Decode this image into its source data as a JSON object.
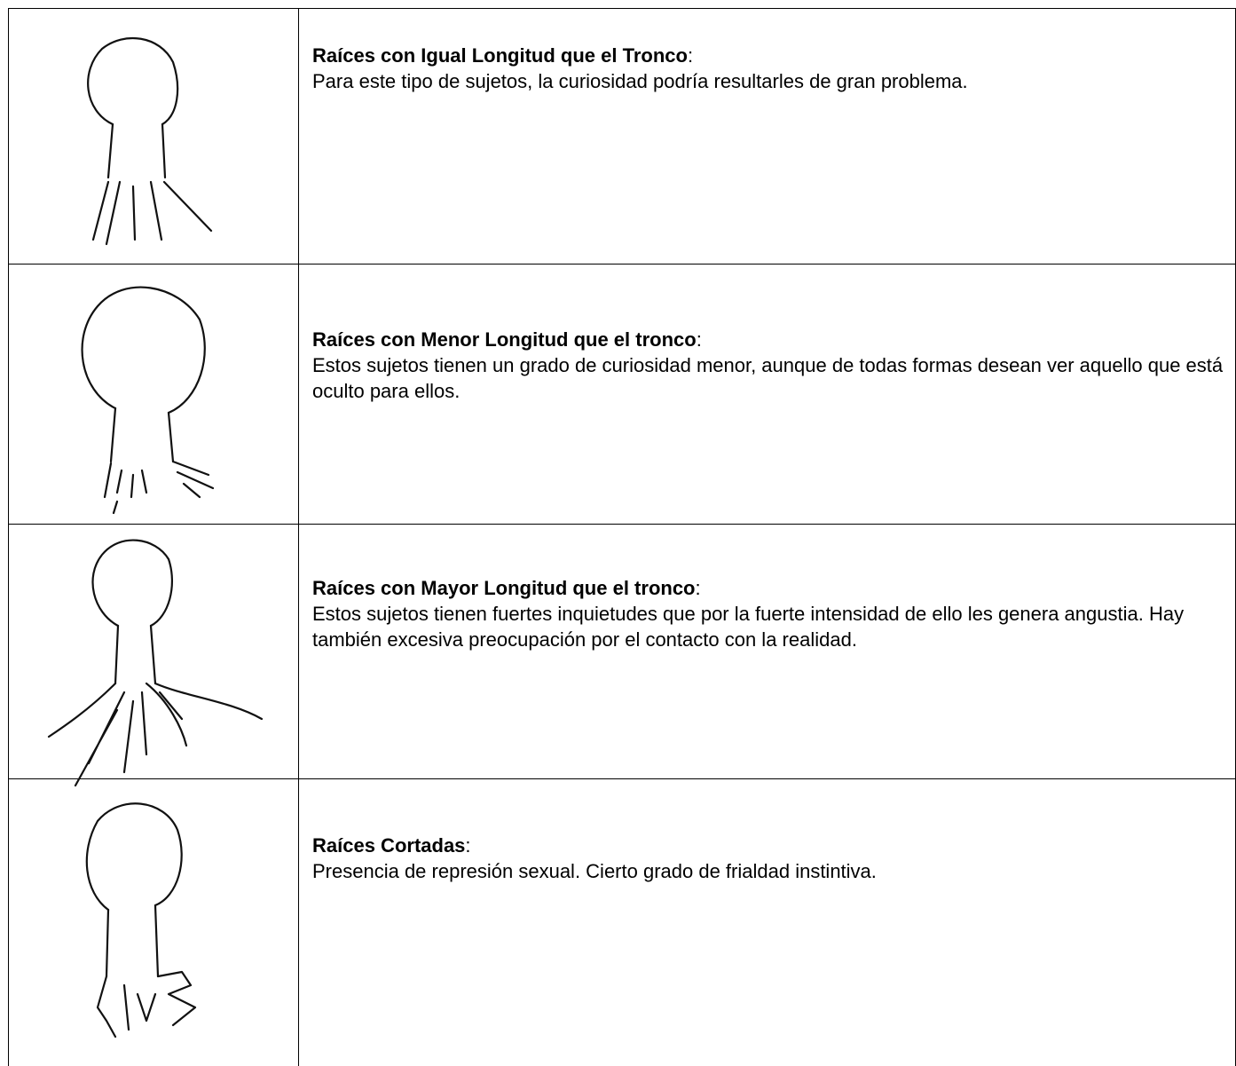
{
  "table": {
    "rows": [
      {
        "heading": "Raíces con Igual Longitud que el Tronco",
        "heading_end": ":",
        "text": "Para este tipo de sujetos, la curiosidad podría resultarles de gran problema."
      },
      {
        "heading": "Raíces con Menor Longitud que el tronco",
        "heading_end": ":",
        "text": "Estos sujetos tienen un grado de curiosidad menor, aunque de todas formas desean ver aquello que está oculto para ellos."
      },
      {
        "heading": "Raíces con Mayor Longitud que el tronco",
        "heading_end": ":",
        "text": "Estos sujetos tienen fuertes inquietudes que por la fuerte intensidad de ello les genera angustia. Hay también excesiva preocupación por el contacto con la realidad."
      },
      {
        "heading": "Raíces Cortadas",
        "heading_end": ":",
        "text": "Presencia de represión sexual. Cierto grado de frialdad instintiva."
      }
    ]
  }
}
